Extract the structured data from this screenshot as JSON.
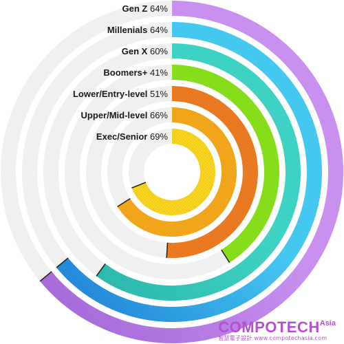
{
  "chart_data": {
    "type": "radial-bar",
    "max": 100,
    "track_color": "#f0f0f0",
    "series": [
      {
        "name": "Gen Z",
        "value": 64,
        "label_value": "64%",
        "color": "#c990f0",
        "textured": false
      },
      {
        "name": "Millenials",
        "value": 64,
        "label_value": "64%",
        "color": "#45c8f0",
        "textured": false
      },
      {
        "name": "Gen X",
        "value": 60,
        "label_value": "60%",
        "color": "#3ed2c4",
        "textured": false
      },
      {
        "name": "Boomers+",
        "value": 41,
        "label_value": "41%",
        "color": "#86dd1a",
        "textured": false
      },
      {
        "name": "Lower/Entry-level",
        "value": 51,
        "label_value": "51%",
        "color": "#ef7c22",
        "textured": true
      },
      {
        "name": "Upper/Mid-level",
        "value": 66,
        "label_value": "66%",
        "color": "#f6a81a",
        "textured": true
      },
      {
        "name": "Exec/Senior",
        "value": 69,
        "label_value": "69%",
        "color": "#f9d51d",
        "textured": true
      }
    ],
    "inner_gradient_colors": {
      "Gen Z": "#a365d6",
      "Millenials": "#1e7fd6",
      "Gen X": "#2bb8ad"
    }
  },
  "watermark": {
    "brand": "COMPOTECH",
    "suffix": "Asia",
    "subtitle": "智慧電子設計 www.compotechasia.com"
  }
}
